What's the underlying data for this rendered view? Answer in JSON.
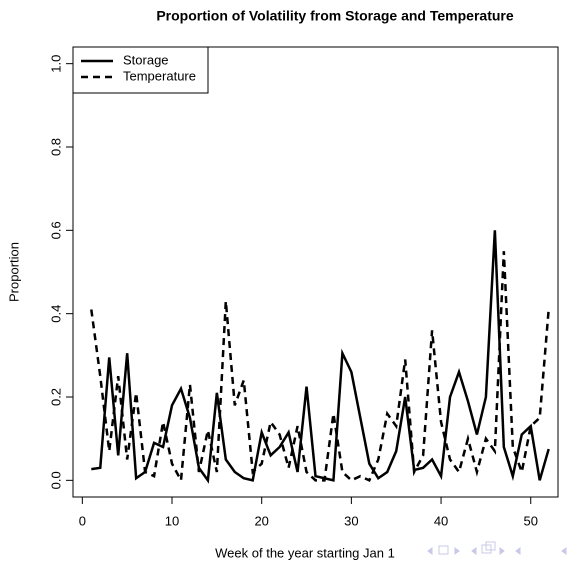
{
  "chart_data": {
    "type": "line",
    "title": "Proportion of Volatility from Storage and Temperature",
    "x_label": "Week of the year starting Jan 1",
    "y_label": "Proportion",
    "x": [
      1,
      2,
      3,
      4,
      5,
      6,
      7,
      8,
      9,
      10,
      11,
      12,
      13,
      14,
      15,
      16,
      17,
      18,
      19,
      20,
      21,
      22,
      23,
      24,
      25,
      26,
      27,
      28,
      29,
      30,
      31,
      32,
      33,
      34,
      35,
      36,
      37,
      38,
      39,
      40,
      41,
      42,
      43,
      44,
      45,
      46,
      47,
      48,
      49,
      50,
      51,
      52
    ],
    "series": [
      {
        "name": "Storage",
        "color": "#000000",
        "dash": "solid",
        "values": [
          0.027,
          0.03,
          0.295,
          0.06,
          0.305,
          0.005,
          0.02,
          0.09,
          0.08,
          0.18,
          0.22,
          0.15,
          0.03,
          0.0,
          0.21,
          0.05,
          0.02,
          0.005,
          0.0,
          0.115,
          0.06,
          0.08,
          0.115,
          0.02,
          0.225,
          0.01,
          0.005,
          0.0,
          0.305,
          0.26,
          0.15,
          0.04,
          0.005,
          0.02,
          0.07,
          0.2,
          0.025,
          0.03,
          0.05,
          0.01,
          0.2,
          0.26,
          0.19,
          0.11,
          0.2,
          0.6,
          0.08,
          0.01,
          0.11,
          0.13,
          0.0,
          0.075
        ]
      },
      {
        "name": "Temperature",
        "color": "#000000",
        "dash": "dashed",
        "values": [
          0.41,
          0.25,
          0.07,
          0.25,
          0.05,
          0.21,
          0.02,
          0.01,
          0.14,
          0.04,
          0.0,
          0.23,
          0.02,
          0.12,
          0.02,
          0.43,
          0.18,
          0.24,
          0.02,
          0.04,
          0.14,
          0.11,
          0.03,
          0.13,
          0.02,
          0.0,
          0.0,
          0.16,
          0.02,
          0.0,
          0.01,
          0.0,
          0.05,
          0.16,
          0.13,
          0.29,
          0.02,
          0.06,
          0.36,
          0.14,
          0.05,
          0.02,
          0.1,
          0.02,
          0.1,
          0.07,
          0.55,
          0.08,
          0.02,
          0.13,
          0.15,
          0.41
        ]
      }
    ],
    "xlim": [
      -1.04,
      53.04
    ],
    "ylim": [
      -0.04,
      1.04
    ],
    "xticks": [
      0,
      10,
      20,
      30,
      40,
      50
    ],
    "yticks": [
      {
        "value": 0,
        "label": "0.0"
      },
      {
        "value": 0.2,
        "label": "0.2"
      },
      {
        "value": 0.4,
        "label": "0.4"
      },
      {
        "value": 0.6,
        "label": "0.6"
      },
      {
        "value": 0.8,
        "label": "0.8"
      },
      {
        "value": 1,
        "label": "1.0"
      }
    ],
    "legend": "topleft"
  }
}
